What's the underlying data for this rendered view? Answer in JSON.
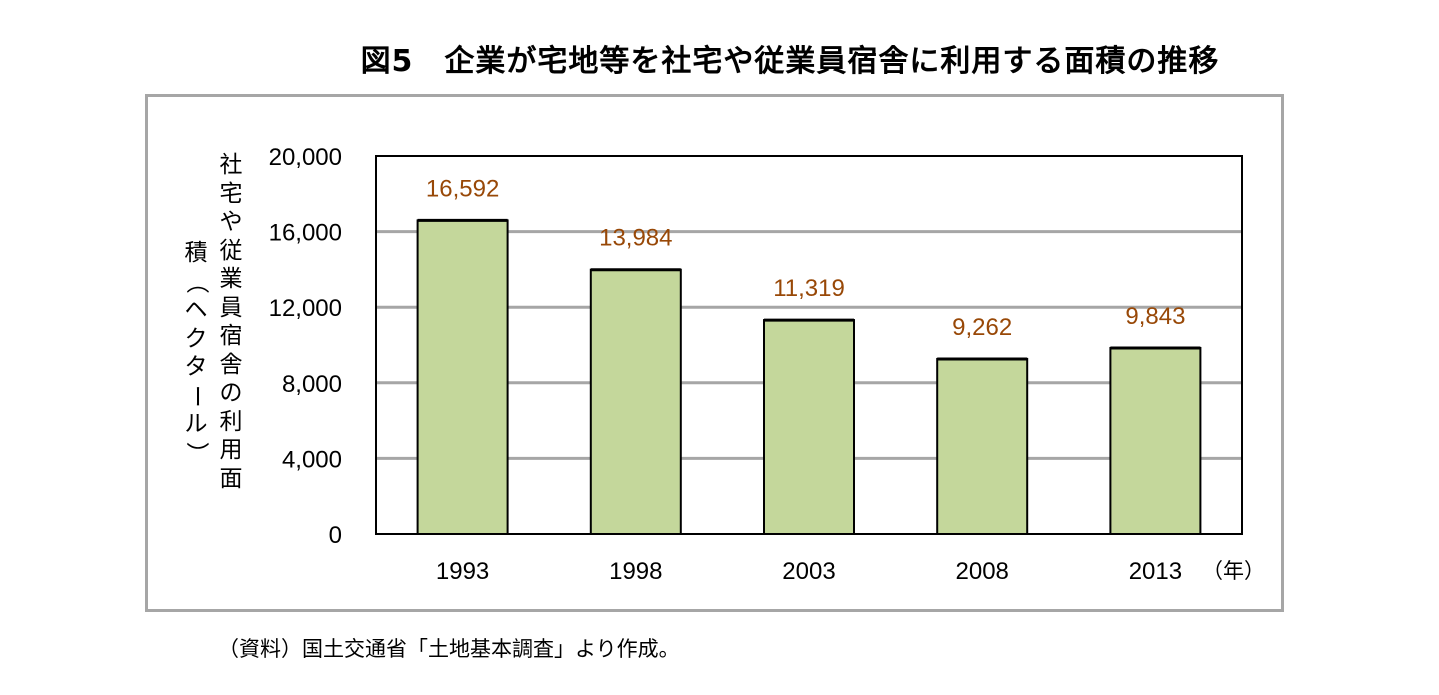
{
  "title": "図5　企業が宅地等を社宅や従業員宿舎に利用する面積の推移",
  "source": "（資料）国土交通省「土地基本調査」より作成。",
  "chart_data": {
    "type": "bar",
    "categories": [
      "1993",
      "1998",
      "2003",
      "2008",
      "2013"
    ],
    "values": [
      16592,
      13984,
      11319,
      9262,
      9843
    ],
    "value_labels": [
      "16,592",
      "13,984",
      "11,319",
      "9,262",
      "9,843"
    ],
    "y_ticks": [
      "0",
      "4,000",
      "8,000",
      "12,000",
      "16,000",
      "20,000"
    ],
    "ylim": [
      0,
      20000
    ],
    "ylabel": "社宅や従業員宿舎の利用面積（ヘクタール）",
    "ylabel_col1": "社宅や従業員宿舎の利用面",
    "ylabel_col2": "積（ヘクタール）",
    "x_unit": "（年）",
    "grid": true,
    "colors": {
      "bar_fill": "#c4d79b",
      "bar_edge": "#000000",
      "value_label": "#984807",
      "grid": "#a6a6a6"
    }
  }
}
